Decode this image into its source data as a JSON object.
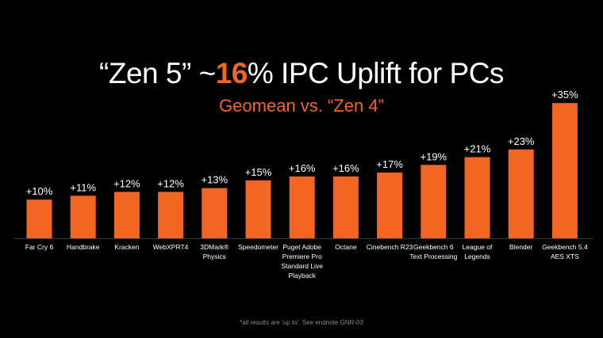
{
  "slide": {
    "title_prefix": "“Zen 5” ~",
    "title_accent": "16",
    "title_suffix": "% IPC Uplift for PCs",
    "subtitle": "Geomean  vs. “Zen 4”",
    "footnote": "*all results are ‘up to’. See endnote GNR-03"
  },
  "colors": {
    "background": "#000000",
    "accent": "#f26522",
    "bar": "#f26522",
    "text": "#ffffff",
    "footnote": "#8a8a8a"
  },
  "chart_data": {
    "type": "bar",
    "title": "“Zen 5” ~16% IPC Uplift for PCs",
    "subtitle": "Geomean  vs. “Zen 4”",
    "categories": [
      [
        "Far Cry 6"
      ],
      [
        "Handbrake"
      ],
      [
        "Kracken"
      ],
      [
        "WebXPRT4"
      ],
      [
        "3DMark®",
        "Physics"
      ],
      [
        "Speedometer"
      ],
      [
        "Puget Adobe",
        "Premiere Pro",
        "Standard Live",
        "Playback"
      ],
      [
        "Octane"
      ],
      [
        "Cinebench R23"
      ],
      [
        "Geekbench 6",
        "Text Processing"
      ],
      [
        "League of",
        "Legends"
      ],
      [
        "Blender"
      ],
      [
        "Geekbench 5.4",
        "AES XTS"
      ]
    ],
    "values": [
      10,
      11,
      12,
      12,
      13,
      15,
      16,
      16,
      17,
      19,
      21,
      23,
      35
    ],
    "data_labels": [
      "+10%",
      "+11%",
      "+12%",
      "+12%",
      "+13%",
      "+15%",
      "+16%",
      "+16%",
      "+17%",
      "+19%",
      "+21%",
      "+23%",
      "+35%"
    ],
    "xlabel": "",
    "ylabel": "",
    "ylim": [
      0,
      35
    ],
    "grid": false,
    "legend": "none"
  }
}
